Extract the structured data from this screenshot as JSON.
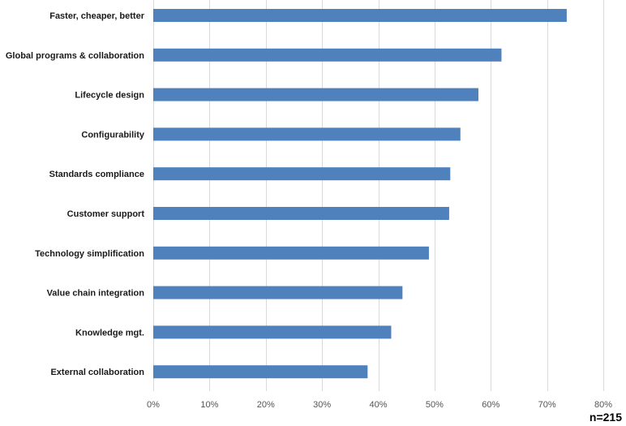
{
  "chart_data": {
    "type": "bar",
    "orientation": "horizontal",
    "categories": [
      "Faster, cheaper, better",
      "Global programs & collaboration",
      "Lifecycle design",
      "Configurability",
      "Standards compliance",
      "Customer support",
      "Technology simplification",
      "Value chain integration",
      "Knowledge mgt.",
      "External collaboration"
    ],
    "values": [
      73.5,
      61.9,
      57.8,
      54.6,
      52.8,
      52.6,
      49.0,
      44.3,
      42.3,
      38.1
    ],
    "xlim": [
      0,
      80
    ],
    "xticks": [
      0,
      10,
      20,
      30,
      40,
      50,
      60,
      70,
      80
    ],
    "tick_labels": [
      "0%",
      "10%",
      "20%",
      "30%",
      "40%",
      "50%",
      "60%",
      "70%",
      "80%"
    ],
    "grid": "vertical",
    "bar_color": "#4f81bd",
    "grid_color": "#d9d9d9",
    "annotation": "n=215"
  }
}
